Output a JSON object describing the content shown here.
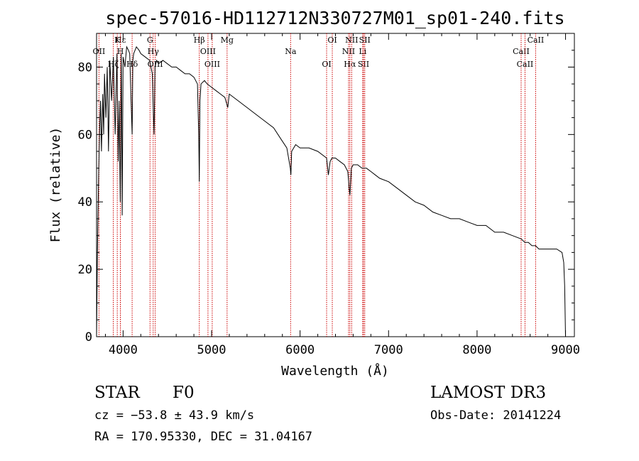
{
  "chart_data": {
    "type": "line",
    "title": "spec-57016-HD112712N330727M01_sp01-240.fits",
    "xlabel": "Wavelength (Å)",
    "ylabel": "Flux (relative)",
    "xlim": [
      3700,
      9100
    ],
    "ylim": [
      0,
      90
    ],
    "xticks": [
      4000,
      5000,
      6000,
      7000,
      8000,
      9000
    ],
    "xtick_labels": [
      "4000",
      "5000",
      "6000",
      "7000",
      "8000",
      "9000"
    ],
    "yticks": [
      0,
      20,
      40,
      60,
      80
    ],
    "ytick_labels": [
      "0",
      "20",
      "40",
      "60",
      "80"
    ],
    "grid": false,
    "series": [
      {
        "name": "spectrum",
        "x": [
          3700,
          3710,
          3725,
          3735,
          3745,
          3755,
          3770,
          3780,
          3790,
          3805,
          3820,
          3835,
          3850,
          3870,
          3890,
          3910,
          3930,
          3945,
          3955,
          3968,
          3980,
          3990,
          4000,
          4020,
          4040,
          4060,
          4075,
          4090,
          4102,
          4110,
          4120,
          4150,
          4180,
          4200,
          4250,
          4300,
          4330,
          4340,
          4350,
          4360,
          4380,
          4400,
          4450,
          4500,
          4550,
          4600,
          4650,
          4700,
          4750,
          4800,
          4840,
          4855,
          4861,
          4868,
          4880,
          4920,
          4950,
          5000,
          5050,
          5100,
          5150,
          5183,
          5200,
          5300,
          5400,
          5500,
          5600,
          5700,
          5800,
          5850,
          5890,
          5896,
          5905,
          5950,
          6000,
          6100,
          6200,
          6300,
          6320,
          6340,
          6360,
          6400,
          6450,
          6500,
          6540,
          6555,
          6563,
          6572,
          6580,
          6600,
          6650,
          6700,
          6750,
          6800,
          6850,
          6900,
          7000,
          7100,
          7200,
          7300,
          7400,
          7500,
          7600,
          7700,
          7800,
          7900,
          8000,
          8100,
          8200,
          8300,
          8400,
          8500,
          8540,
          8580,
          8620,
          8660,
          8700,
          8800,
          8900,
          8960,
          8980,
          8990,
          9000
        ],
        "y": [
          0,
          25,
          50,
          62,
          70,
          55,
          72,
          60,
          78,
          65,
          80,
          55,
          82,
          70,
          83,
          60,
          84,
          52,
          70,
          40,
          84,
          36,
          83,
          80,
          86,
          85,
          84,
          70,
          60,
          82,
          84,
          86,
          85,
          84,
          83,
          82,
          78,
          68,
          60,
          80,
          82,
          81,
          82,
          81,
          80,
          80,
          79,
          78,
          78,
          77,
          75,
          60,
          46,
          70,
          75,
          76,
          75,
          74,
          73,
          72,
          71,
          68,
          72,
          70,
          68,
          66,
          64,
          62,
          58,
          56,
          50,
          48,
          55,
          57,
          56,
          56,
          55,
          53,
          48,
          52,
          53,
          53,
          52,
          51,
          49,
          44,
          42,
          46,
          50,
          51,
          51,
          50,
          50,
          49,
          48,
          47,
          46,
          44,
          42,
          40,
          39,
          37,
          36,
          35,
          35,
          34,
          33,
          33,
          31,
          31,
          30,
          29,
          28,
          28,
          27,
          27,
          26,
          26,
          26,
          25,
          22,
          15,
          0
        ]
      }
    ],
    "line_markers": [
      {
        "name": "Hε",
        "x": 3970
      },
      {
        "name": "OII",
        "x": 3727
      },
      {
        "name": "Hζ",
        "x": 3889
      },
      {
        "name": "K",
        "x": 3934
      },
      {
        "name": "H",
        "x": 3969
      },
      {
        "name": "Hδ",
        "x": 4102
      },
      {
        "name": "G",
        "x": 4304
      },
      {
        "name": "Hγ",
        "x": 4340
      },
      {
        "name": "OIII",
        "x": 4363
      },
      {
        "name": "Hβ",
        "x": 4861
      },
      {
        "name": "OIII",
        "x": 4959
      },
      {
        "name": "OIII",
        "x": 5007
      },
      {
        "name": "Mg",
        "x": 5175
      },
      {
        "name": "Na",
        "x": 5893
      },
      {
        "name": "OI",
        "x": 6300
      },
      {
        "name": "OI",
        "x": 6364
      },
      {
        "name": "NII",
        "x": 6548
      },
      {
        "name": "Hα",
        "x": 6563
      },
      {
        "name": "NII",
        "x": 6583
      },
      {
        "name": "Li",
        "x": 6708
      },
      {
        "name": "SII",
        "x": 6717
      },
      {
        "name": "SII",
        "x": 6731
      },
      {
        "name": "CaII",
        "x": 8498
      },
      {
        "name": "CaII",
        "x": 8542
      },
      {
        "name": "CaII",
        "x": 8662
      }
    ]
  },
  "info": {
    "object_class": "STAR",
    "subclass": "F0",
    "survey": "LAMOST DR3",
    "redshift_text": "cz = −53.8 ± 43.9 km/s",
    "obs_date": "Obs-Date: 20141224",
    "coords": "RA = 170.95330, DEC =  31.04167"
  },
  "colors": {
    "marker_line": "#cc0000",
    "spectrum": "#000000",
    "axes": "#000000"
  }
}
